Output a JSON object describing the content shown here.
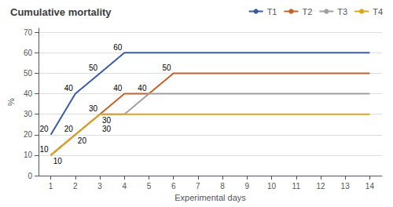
{
  "chart_data": {
    "type": "line",
    "title": "Cumulative mortality",
    "xlabel": "Experimental days",
    "ylabel": "%",
    "x": [
      1,
      2,
      3,
      4,
      5,
      6,
      7,
      8,
      9,
      10,
      11,
      12,
      13,
      14
    ],
    "xlim": [
      0.5,
      14.5
    ],
    "ylim": [
      0,
      72
    ],
    "xticks": [
      1,
      2,
      3,
      4,
      5,
      6,
      7,
      8,
      9,
      10,
      11,
      12,
      13,
      14
    ],
    "yticks": [
      0,
      10,
      20,
      30,
      40,
      50,
      60,
      70
    ],
    "grid": true,
    "legend": "upper right",
    "series": [
      {
        "name": "T1",
        "color": "#3B5BA5",
        "values": [
          20,
          40,
          50,
          60,
          60,
          60,
          60,
          60,
          60,
          60,
          60,
          60,
          60,
          60
        ],
        "annotations": [
          {
            "x": 1,
            "y": 20,
            "text": "20"
          },
          {
            "x": 2,
            "y": 40,
            "text": "40"
          },
          {
            "x": 3,
            "y": 50,
            "text": "50"
          },
          {
            "x": 4,
            "y": 60,
            "text": "60"
          }
        ]
      },
      {
        "name": "T2",
        "color": "#C0622D",
        "values": [
          10,
          20,
          30,
          40,
          40,
          50,
          50,
          50,
          50,
          50,
          50,
          50,
          50,
          50
        ],
        "annotations": [
          {
            "x": 1,
            "y": 10,
            "text": "10"
          },
          {
            "x": 2,
            "y": 20,
            "text": "20"
          },
          {
            "x": 3,
            "y": 30,
            "text": "30"
          },
          {
            "x": 4,
            "y": 40,
            "text": "40"
          },
          {
            "x": 5,
            "y": 40,
            "text": "40"
          },
          {
            "x": 6,
            "y": 50,
            "text": "50"
          }
        ]
      },
      {
        "name": "T3",
        "color": "#A0A0A0",
        "values": [
          10,
          20,
          30,
          30,
          40,
          40,
          40,
          40,
          40,
          40,
          40,
          40,
          40,
          40
        ],
        "annotations": [
          {
            "x": 3,
            "y": 30,
            "text": "30"
          }
        ]
      },
      {
        "name": "T4",
        "color": "#DAA520",
        "values": [
          10,
          20,
          30,
          30,
          30,
          30,
          30,
          30,
          30,
          30,
          30,
          30,
          30,
          30
        ],
        "annotations": [
          {
            "x": 1,
            "y": 10,
            "text": "10"
          },
          {
            "x": 2,
            "y": 20,
            "text": "20"
          },
          {
            "x": 3,
            "y": 30,
            "text": "30"
          }
        ]
      }
    ]
  }
}
